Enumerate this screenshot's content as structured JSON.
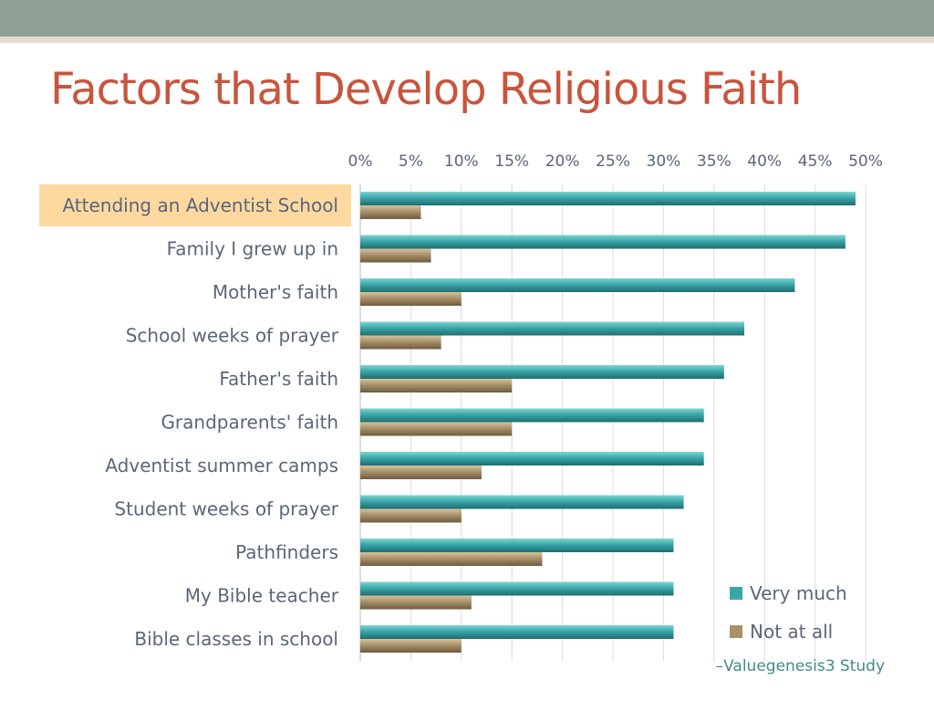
{
  "slide": {
    "title": "Factors that Develop Religious Faith",
    "source": "–Valuegenesis3 Study"
  },
  "colors": {
    "very_much": "#3aa6a8",
    "not_at_all": "#a8916a",
    "highlight": "#fdd9a0",
    "title": "#c8553d",
    "label_text": "#5b6678"
  },
  "highlighted_category": "Attending an Adventist School",
  "chart_data": {
    "type": "bar",
    "orientation": "horizontal",
    "title": "",
    "xlabel": "",
    "ylabel": "",
    "xlim": [
      0,
      50
    ],
    "x_ticks": [
      "0%",
      "5%",
      "10%",
      "15%",
      "20%",
      "25%",
      "30%",
      "35%",
      "40%",
      "45%",
      "50%"
    ],
    "x_tick_values": [
      0,
      5,
      10,
      15,
      20,
      25,
      30,
      35,
      40,
      45,
      50
    ],
    "axis_position": "top",
    "grid": true,
    "legend_position": "bottom-right",
    "categories": [
      "Attending an Adventist School",
      "Family I grew up in",
      "Mother's faith",
      "School weeks of prayer",
      "Father's faith",
      "Grandparents' faith",
      "Adventist summer camps",
      "Student weeks of prayer",
      "Pathfinders",
      "My Bible teacher",
      "Bible classes in school"
    ],
    "series": [
      {
        "name": "Very much",
        "values": [
          49,
          48,
          43,
          38,
          36,
          34,
          34,
          32,
          31,
          31,
          31
        ]
      },
      {
        "name": "Not at all",
        "values": [
          6,
          7,
          10,
          8,
          15,
          15,
          12,
          10,
          18,
          11,
          10
        ]
      }
    ]
  }
}
